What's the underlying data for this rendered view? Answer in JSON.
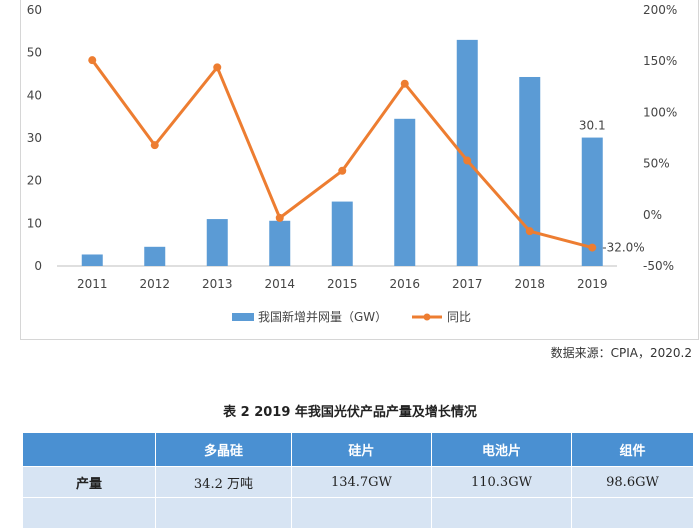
{
  "chart_data": {
    "type": "bar+line",
    "categories": [
      "2011",
      "2012",
      "2013",
      "2014",
      "2015",
      "2016",
      "2017",
      "2018",
      "2019"
    ],
    "series": [
      {
        "name": "我国新增并网量（GW）",
        "type": "bar",
        "axis": "left",
        "color": "#5b9bd5",
        "values": [
          2.7,
          4.5,
          11.0,
          10.6,
          15.1,
          34.5,
          53.0,
          44.3,
          30.1
        ]
      },
      {
        "name": "同比",
        "type": "line",
        "axis": "right",
        "color": "#ed7d31",
        "values": [
          151,
          68,
          144,
          -3,
          43,
          128,
          53,
          -16,
          -32
        ]
      }
    ],
    "y_left": {
      "min": 0,
      "max": 60,
      "ticks": [
        0,
        10,
        20,
        30,
        40,
        50,
        60
      ]
    },
    "y_right": {
      "min": -50,
      "max": 200,
      "ticks": [
        "-50%",
        "0%",
        "50%",
        "100%",
        "150%",
        "200%"
      ]
    },
    "annotations": [
      {
        "label": "30.1",
        "category": "2019",
        "series": "我国新增并网量（GW）"
      },
      {
        "label": "-32.0%",
        "category": "2019",
        "series": "同比"
      }
    ],
    "legend_position": "bottom",
    "grid": false
  },
  "source": "数据来源：CPIA，2020.2",
  "table": {
    "title": "表 2 2019 年我国光伏产品产量及增长情况",
    "headers": [
      "",
      "多晶硅",
      "硅片",
      "电池片",
      "组件"
    ],
    "rows": [
      {
        "label": "产量",
        "values": [
          "34.2 万吨",
          "134.7GW",
          "110.3GW",
          "98.6GW"
        ]
      }
    ]
  }
}
